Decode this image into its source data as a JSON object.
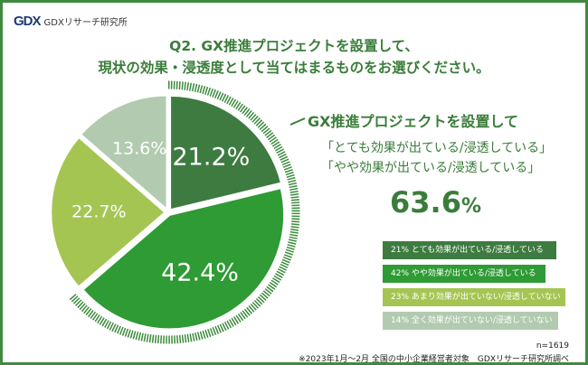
{
  "logo": {
    "mark": "GDX",
    "text": "GDXリサーチ研究所"
  },
  "title": [
    "Q2. GX推進プロジェクトを設置して、",
    "現状の効果・浸透度として当てはまるものをお選びください。"
  ],
  "chart_data": {
    "type": "pie",
    "categories": [
      "とても効果が出ている/浸透している",
      "やや効果が出ている/浸透している",
      "あまり効果が出ていない/浸透していない",
      "全く効果が出ていない/浸透していない"
    ],
    "values": [
      21.2,
      42.4,
      22.7,
      13.6
    ],
    "data_labels": [
      "21.2%",
      "42.4%",
      "22.7%",
      "13.6%"
    ],
    "colors": [
      "#3d7b40",
      "#2e9b34",
      "#a5c553",
      "#b2cbb0"
    ],
    "legend": [
      "21% とても効果が出ている/浸透している",
      "42% やや効果が出ている/浸透している",
      "23% あまり効果が出ていない/浸透していない",
      "14% 全く効果が出ていない/浸透していない"
    ],
    "legend_placement": "right"
  },
  "callout": {
    "heading": "GX推進プロジェクトを設置して",
    "line1": "「とても効果が出ている/浸透している」",
    "line2": "「やや効果が出ている/浸透している」",
    "value": "63.6",
    "unit": "%"
  },
  "footer": {
    "n": "n=1619",
    "note": "※2023年1月～2月 全国の中小企業経営者対象　GDXリサーチ研究所調べ"
  }
}
